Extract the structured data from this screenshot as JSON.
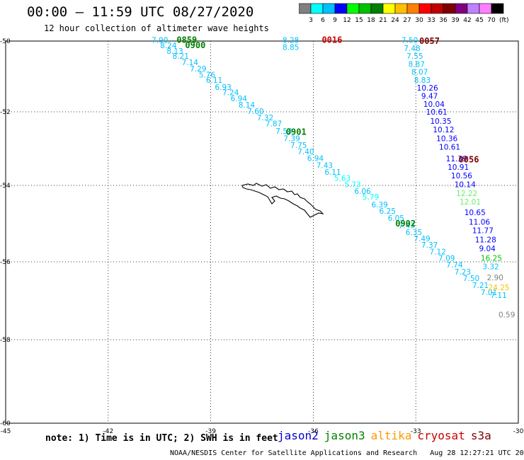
{
  "header": {
    "title": "00:00 – 11:59 UTC 08/27/2020",
    "subtitle": "12 hour collection of altimeter wave heights"
  },
  "colorbar": {
    "labels": [
      "3",
      "6",
      "9",
      "12",
      "15",
      "18",
      "21",
      "24",
      "27",
      "30",
      "33",
      "36",
      "39",
      "42",
      "45",
      "70"
    ],
    "unit": "(ft)",
    "colors": [
      "#808080",
      "#00ffff",
      "#00c0ff",
      "#0000ff",
      "#00ff00",
      "#00c000",
      "#008000",
      "#ffff00",
      "#ffc000",
      "#ff8000",
      "#ff0000",
      "#c00000",
      "#800000",
      "#800080",
      "#c080ff",
      "#ff80ff",
      "#000000"
    ]
  },
  "axes": {
    "x_ticks": [
      "-45",
      "-42",
      "-39",
      "-36",
      "-33",
      "-30"
    ],
    "y_ticks": [
      "-50",
      "-52",
      "-54",
      "-56",
      "-58",
      "-60"
    ]
  },
  "note": "note: 1) Time is in UTC; 2) SWH is in feet",
  "satellites": [
    {
      "name": "jason2",
      "color": "#0000cc"
    },
    {
      "name": "jason3",
      "color": "#008000"
    },
    {
      "name": "altika",
      "color": "#ff9900"
    },
    {
      "name": "cryosat",
      "color": "#cc0000"
    },
    {
      "name": "s3a",
      "color": "#800000"
    }
  ],
  "credit": "NOAA/NESDIS Center for Satellite Applications and Research   Aug 28 12:27:21 UTC 2020",
  "time_labels": [
    {
      "text": "0859",
      "color": "#008000",
      "lon": -40.0,
      "lat": -49.97
    },
    {
      "text": "0900",
      "color": "#008000",
      "lon": -39.75,
      "lat": -50.12
    },
    {
      "text": "0901",
      "color": "#008000",
      "lon": -36.8,
      "lat": -52.55
    },
    {
      "text": "0902",
      "color": "#008000",
      "lon": -33.6,
      "lat": -55.0
    },
    {
      "text": "0016",
      "color": "#cc0000",
      "lon": -35.75,
      "lat": -49.97
    },
    {
      "text": "0057",
      "color": "#800000",
      "lon": -32.9,
      "lat": -50.0
    },
    {
      "text": "0056",
      "color": "#800000",
      "lon": -31.75,
      "lat": -53.3
    }
  ],
  "tracks": [
    {
      "name": "track-0900",
      "points": [
        {
          "v": "7.90",
          "lon": -40.73,
          "lat": -49.97,
          "c": "#00c0ff"
        },
        {
          "v": "8.24",
          "lon": -40.48,
          "lat": -50.12,
          "c": "#00c0ff"
        },
        {
          "v": "8.13",
          "lon": -40.29,
          "lat": -50.28,
          "c": "#00c0ff"
        },
        {
          "v": "8.21",
          "lon": -40.12,
          "lat": -50.42,
          "c": "#00c0ff"
        },
        {
          "v": "7.14",
          "lon": -39.85,
          "lat": -50.6,
          "c": "#00c0ff"
        },
        {
          "v": "7.29",
          "lon": -39.61,
          "lat": -50.78,
          "c": "#00c0ff"
        },
        {
          "v": "5.76",
          "lon": -39.35,
          "lat": -50.95,
          "c": "#00c0ff"
        },
        {
          "v": "6.11",
          "lon": -39.14,
          "lat": -51.1,
          "c": "#00c0ff"
        },
        {
          "v": "6.93",
          "lon": -38.88,
          "lat": -51.3,
          "c": "#00c0ff"
        },
        {
          "v": "7.24",
          "lon": -38.66,
          "lat": -51.45,
          "c": "#00c0ff"
        },
        {
          "v": "6.94",
          "lon": -38.42,
          "lat": -51.62,
          "c": "#00c0ff"
        },
        {
          "v": "8.14",
          "lon": -38.19,
          "lat": -51.8,
          "c": "#00c0ff"
        },
        {
          "v": "7.60",
          "lon": -37.93,
          "lat": -51.98,
          "c": "#00c0ff"
        },
        {
          "v": "7.32",
          "lon": -37.65,
          "lat": -52.15,
          "c": "#00c0ff"
        },
        {
          "v": "7.87",
          "lon": -37.4,
          "lat": -52.32,
          "c": "#00c0ff"
        },
        {
          "v": "7.53",
          "lon": -37.1,
          "lat": -52.52,
          "c": "#00c0ff"
        },
        {
          "v": "7.39",
          "lon": -36.87,
          "lat": -52.72,
          "c": "#00c0ff"
        },
        {
          "v": "7.75",
          "lon": -36.67,
          "lat": -52.9,
          "c": "#00c0ff"
        },
        {
          "v": "7.40",
          "lon": -36.46,
          "lat": -53.08,
          "c": "#00c0ff"
        },
        {
          "v": "6.94",
          "lon": -36.18,
          "lat": -53.26,
          "c": "#00c0ff"
        },
        {
          "v": "7.43",
          "lon": -35.91,
          "lat": -53.45,
          "c": "#00c0ff"
        },
        {
          "v": "6.11",
          "lon": -35.67,
          "lat": -53.63,
          "c": "#00c0ff"
        },
        {
          "v": "5.63",
          "lon": -35.39,
          "lat": -53.8,
          "c": "#00ffff"
        },
        {
          "v": "5.73",
          "lon": -35.09,
          "lat": -53.97,
          "c": "#00ffff"
        },
        {
          "v": "6.06",
          "lon": -34.8,
          "lat": -54.15,
          "c": "#00c0ff"
        },
        {
          "v": "5.79",
          "lon": -34.56,
          "lat": -54.3,
          "c": "#00ffff"
        },
        {
          "v": "6.39",
          "lon": -34.3,
          "lat": -54.5,
          "c": "#00c0ff"
        },
        {
          "v": "6.25",
          "lon": -34.07,
          "lat": -54.67,
          "c": "#00c0ff"
        },
        {
          "v": "6.05",
          "lon": -33.82,
          "lat": -54.85,
          "c": "#00c0ff"
        },
        {
          "v": "7.43",
          "lon": -33.51,
          "lat": -55.05,
          "c": "#00c0ff"
        },
        {
          "v": "6.35",
          "lon": -33.3,
          "lat": -55.22,
          "c": "#00c0ff"
        },
        {
          "v": "7.49",
          "lon": -33.06,
          "lat": -55.39,
          "c": "#00c0ff"
        },
        {
          "v": "7.37",
          "lon": -32.84,
          "lat": -55.56,
          "c": "#00c0ff"
        },
        {
          "v": "7.12",
          "lon": -32.6,
          "lat": -55.73,
          "c": "#00c0ff"
        },
        {
          "v": "7.09",
          "lon": -32.34,
          "lat": -55.9,
          "c": "#00c0ff"
        },
        {
          "v": "7.74",
          "lon": -32.11,
          "lat": -56.07,
          "c": "#00c0ff"
        },
        {
          "v": "7.23",
          "lon": -31.87,
          "lat": -56.25,
          "c": "#00c0ff"
        },
        {
          "v": "7.50",
          "lon": -31.62,
          "lat": -56.42,
          "c": "#00c0ff"
        },
        {
          "v": "7.21",
          "lon": -31.35,
          "lat": -56.6,
          "c": "#00c0ff"
        },
        {
          "v": "7.01",
          "lon": -31.1,
          "lat": -56.78,
          "c": "#00c0ff"
        }
      ]
    },
    {
      "name": "track-0016",
      "points": [
        {
          "v": "8.28",
          "lon": -36.9,
          "lat": -49.97,
          "c": "#00c0ff"
        },
        {
          "v": "8.85",
          "lon": -36.9,
          "lat": -50.17,
          "c": "#00c0ff"
        }
      ]
    },
    {
      "name": "track-0057",
      "points": [
        {
          "v": "7.50",
          "lon": -33.42,
          "lat": -49.97,
          "c": "#00c0ff"
        },
        {
          "v": "7.48",
          "lon": -33.35,
          "lat": -50.2,
          "c": "#00c0ff"
        },
        {
          "v": "7.55",
          "lon": -33.27,
          "lat": -50.42,
          "c": "#00c0ff"
        },
        {
          "v": "8.87",
          "lon": -33.22,
          "lat": -50.65,
          "c": "#00c0ff"
        },
        {
          "v": "8.07",
          "lon": -33.13,
          "lat": -50.87,
          "c": "#00c0ff"
        },
        {
          "v": "8.83",
          "lon": -33.05,
          "lat": -51.1,
          "c": "#00c0ff"
        },
        {
          "v": "10.26",
          "lon": -32.97,
          "lat": -51.32,
          "c": "#0000ff"
        },
        {
          "v": "9.47",
          "lon": -32.84,
          "lat": -51.55,
          "c": "#0000ff"
        },
        {
          "v": "10.04",
          "lon": -32.78,
          "lat": -51.78,
          "c": "#0000ff"
        },
        {
          "v": "10.61",
          "lon": -32.7,
          "lat": -52.0,
          "c": "#0000ff"
        },
        {
          "v": "10.35",
          "lon": -32.58,
          "lat": -52.25,
          "c": "#0000ff"
        },
        {
          "v": "10.12",
          "lon": -32.5,
          "lat": -52.48,
          "c": "#0000ff"
        },
        {
          "v": "10.36",
          "lon": -32.4,
          "lat": -52.72,
          "c": "#0000ff"
        },
        {
          "v": "10.61",
          "lon": -32.32,
          "lat": -52.95,
          "c": "#0000ff"
        },
        {
          "v": "11.39",
          "lon": -32.12,
          "lat": -53.27,
          "c": "#0000ff"
        },
        {
          "v": "10.91",
          "lon": -32.07,
          "lat": -53.5,
          "c": "#0000ff"
        },
        {
          "v": "10.56",
          "lon": -31.97,
          "lat": -53.73,
          "c": "#0000ff"
        },
        {
          "v": "10.14",
          "lon": -31.87,
          "lat": -53.97,
          "c": "#0000ff"
        },
        {
          "v": "12.22",
          "lon": -31.82,
          "lat": -54.2,
          "c": "#66ee66"
        },
        {
          "v": "12.01",
          "lon": -31.72,
          "lat": -54.43,
          "c": "#66ee66"
        },
        {
          "v": "10.65",
          "lon": -31.58,
          "lat": -54.7,
          "c": "#0000ff"
        },
        {
          "v": "11.06",
          "lon": -31.45,
          "lat": -54.95,
          "c": "#0000ff"
        },
        {
          "v": "11.77",
          "lon": -31.35,
          "lat": -55.18,
          "c": "#0000ff"
        },
        {
          "v": "11.28",
          "lon": -31.27,
          "lat": -55.42,
          "c": "#0000ff"
        },
        {
          "v": "9.04",
          "lon": -31.15,
          "lat": -55.65,
          "c": "#0000ff"
        },
        {
          "v": "16.25",
          "lon": -31.1,
          "lat": -55.9,
          "c": "#00c000"
        },
        {
          "v": "3.32",
          "lon": -31.05,
          "lat": -56.12,
          "c": "#00c0ff"
        },
        {
          "v": "2.90",
          "lon": -30.92,
          "lat": -56.4,
          "c": "#808080"
        },
        {
          "v": "24.25",
          "lon": -30.88,
          "lat": -56.65,
          "c": "#ffc000"
        },
        {
          "v": "7.11",
          "lon": -30.82,
          "lat": -56.85,
          "c": "#00c0ff"
        },
        {
          "v": "0.59",
          "lon": -30.58,
          "lat": -57.35,
          "c": "#808080"
        }
      ]
    }
  ]
}
